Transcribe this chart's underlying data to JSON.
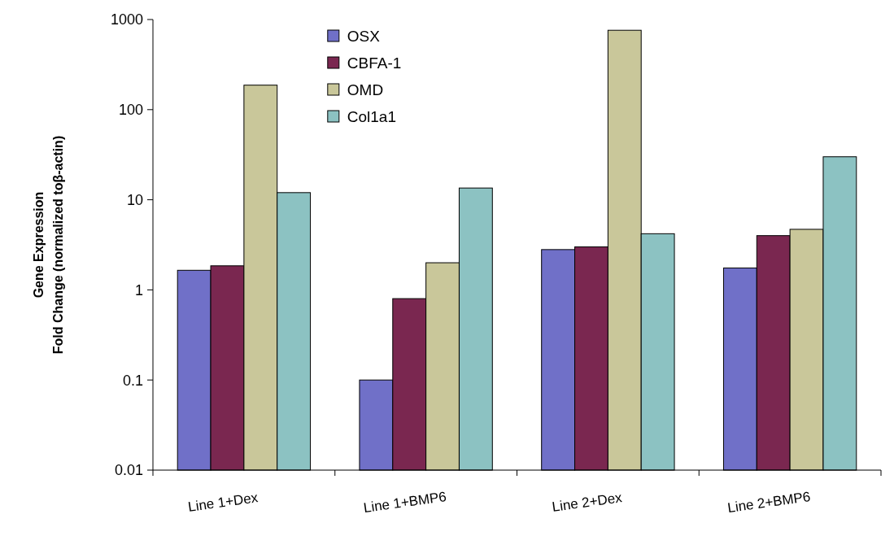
{
  "chart_data": {
    "type": "bar",
    "ylabel": "Gene Expression\nFold Change (normalized toβ-actin)",
    "categories": [
      "Line 1+Dex",
      "Line 1+BMP6",
      "Line 2+Dex",
      "Line 2+BMP6"
    ],
    "log": true,
    "ylim": [
      0.01,
      1000
    ],
    "yticks": [
      0.01,
      0.1,
      1,
      10,
      100,
      1000
    ],
    "grid": false,
    "legend": "top left",
    "series": [
      {
        "name": "OSX",
        "color": "#7070c8",
        "values": [
          1.65,
          0.1,
          2.8,
          1.75
        ]
      },
      {
        "name": "CBFA-1",
        "color": "#7a2750",
        "values": [
          1.85,
          0.8,
          3.0,
          4.0
        ]
      },
      {
        "name": "OMD",
        "color": "#c9c79a",
        "values": [
          187,
          2.0,
          760,
          4.7
        ]
      },
      {
        "name": "Col1a1",
        "color": "#8cc2c2",
        "values": [
          12,
          13.5,
          4.2,
          30
        ]
      }
    ]
  }
}
